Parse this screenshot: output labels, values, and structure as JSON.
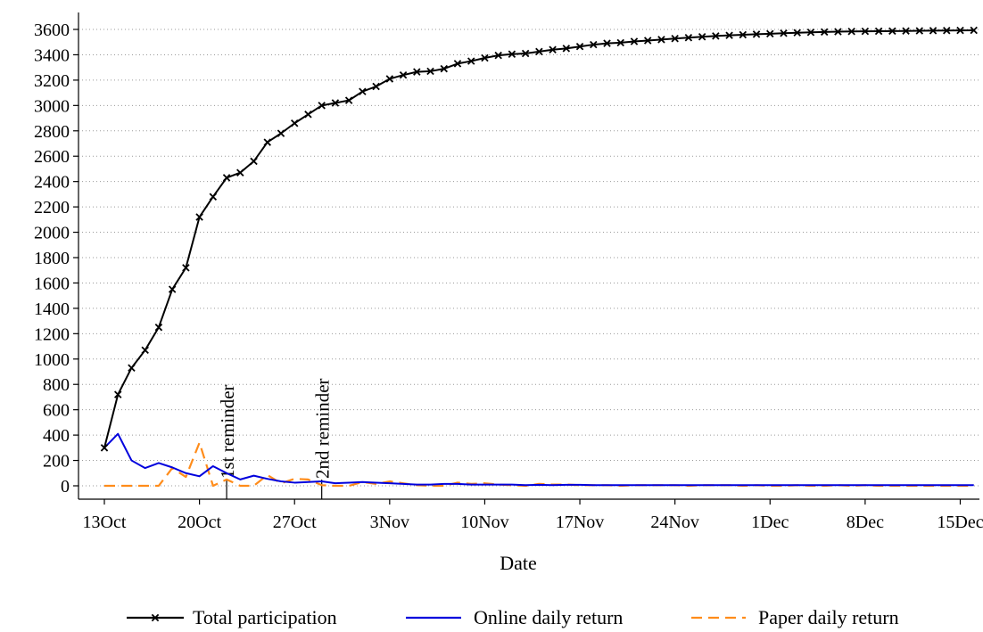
{
  "chart_data": {
    "type": "line",
    "xlabel": "Date",
    "ylabel": "",
    "grid": true,
    "legend_position": "bottom",
    "ylim": [
      0,
      3600
    ],
    "y_ticks": [
      "0",
      "200",
      "400",
      "600",
      "800",
      "1000",
      "1200",
      "1400",
      "1600",
      "1800",
      "2000",
      "2200",
      "2400",
      "2600",
      "2800",
      "3000",
      "3200",
      "3400",
      "3600"
    ],
    "x_ticks": [
      {
        "date": "2014-10-13",
        "label": "13Oct"
      },
      {
        "date": "2014-10-20",
        "label": "20Oct"
      },
      {
        "date": "2014-10-27",
        "label": "27Oct"
      },
      {
        "date": "2014-11-03",
        "label": "3Nov"
      },
      {
        "date": "2014-11-10",
        "label": "10Nov"
      },
      {
        "date": "2014-11-17",
        "label": "17Nov"
      },
      {
        "date": "2014-11-24",
        "label": "24Nov"
      },
      {
        "date": "2014-12-01",
        "label": "1Dec"
      },
      {
        "date": "2014-12-08",
        "label": "8Dec"
      },
      {
        "date": "2014-12-15",
        "label": "15Dec"
      }
    ],
    "annotations": [
      {
        "date": "2014-10-22",
        "label": "1st reminder"
      },
      {
        "date": "2014-10-29",
        "label": "2nd reminder"
      }
    ],
    "dates": [
      "2014-10-13",
      "2014-10-14",
      "2014-10-15",
      "2014-10-16",
      "2014-10-17",
      "2014-10-18",
      "2014-10-19",
      "2014-10-20",
      "2014-10-21",
      "2014-10-22",
      "2014-10-23",
      "2014-10-24",
      "2014-10-25",
      "2014-10-26",
      "2014-10-27",
      "2014-10-28",
      "2014-10-29",
      "2014-10-30",
      "2014-10-31",
      "2014-11-01",
      "2014-11-02",
      "2014-11-03",
      "2014-11-04",
      "2014-11-05",
      "2014-11-06",
      "2014-11-07",
      "2014-11-08",
      "2014-11-09",
      "2014-11-10",
      "2014-11-11",
      "2014-11-12",
      "2014-11-13",
      "2014-11-14",
      "2014-11-15",
      "2014-11-16",
      "2014-11-17",
      "2014-11-18",
      "2014-11-19",
      "2014-11-20",
      "2014-11-21",
      "2014-11-22",
      "2014-11-23",
      "2014-11-24",
      "2014-11-25",
      "2014-11-26",
      "2014-11-27",
      "2014-11-28",
      "2014-11-29",
      "2014-11-30",
      "2014-12-01",
      "2014-12-02",
      "2014-12-03",
      "2014-12-04",
      "2014-12-05",
      "2014-12-06",
      "2014-12-07",
      "2014-12-08",
      "2014-12-09",
      "2014-12-10",
      "2014-12-11",
      "2014-12-12",
      "2014-12-13",
      "2014-12-14",
      "2014-12-15",
      "2014-12-16"
    ],
    "series": [
      {
        "name": "Total participation",
        "color": "#000000",
        "marker": "x",
        "style": "solid",
        "values": [
          300,
          720,
          930,
          1070,
          1250,
          1550,
          1720,
          2120,
          2280,
          2430,
          2470,
          2560,
          2710,
          2780,
          2860,
          2930,
          3000,
          3020,
          3040,
          3110,
          3150,
          3210,
          3240,
          3265,
          3270,
          3290,
          3330,
          3350,
          3375,
          3395,
          3405,
          3410,
          3425,
          3440,
          3450,
          3465,
          3480,
          3490,
          3495,
          3505,
          3512,
          3520,
          3528,
          3535,
          3542,
          3548,
          3553,
          3558,
          3562,
          3566,
          3570,
          3574,
          3577,
          3580,
          3582,
          3584,
          3585,
          3586,
          3587,
          3588,
          3589,
          3590,
          3591,
          3592,
          3593
        ]
      },
      {
        "name": "Online daily return",
        "color": "#0000dd",
        "style": "solid",
        "values": [
          300,
          410,
          200,
          140,
          180,
          145,
          100,
          75,
          155,
          100,
          50,
          80,
          55,
          35,
          25,
          30,
          35,
          20,
          25,
          30,
          25,
          20,
          15,
          10,
          10,
          15,
          15,
          10,
          10,
          10,
          10,
          5,
          8,
          5,
          8,
          8,
          5,
          5,
          5,
          5,
          5,
          5,
          5,
          5,
          5,
          5,
          5,
          5,
          5,
          5,
          5,
          5,
          5,
          5,
          5,
          5,
          5,
          5,
          5,
          5,
          5,
          5,
          5,
          5,
          5
        ]
      },
      {
        "name": "Paper daily return",
        "color": "#ff8c1a",
        "style": "dashed",
        "values": [
          0,
          0,
          0,
          0,
          0,
          140,
          70,
          340,
          0,
          50,
          0,
          0,
          85,
          20,
          55,
          50,
          5,
          0,
          0,
          30,
          15,
          35,
          20,
          5,
          0,
          0,
          25,
          15,
          20,
          10,
          5,
          0,
          15,
          10,
          10,
          5,
          5,
          5,
          0,
          5,
          5,
          5,
          5,
          0,
          5,
          5,
          5,
          0,
          5,
          0,
          0,
          5,
          0,
          0,
          5,
          0,
          5,
          0,
          0,
          0,
          0,
          0,
          0,
          0,
          0
        ]
      }
    ]
  }
}
